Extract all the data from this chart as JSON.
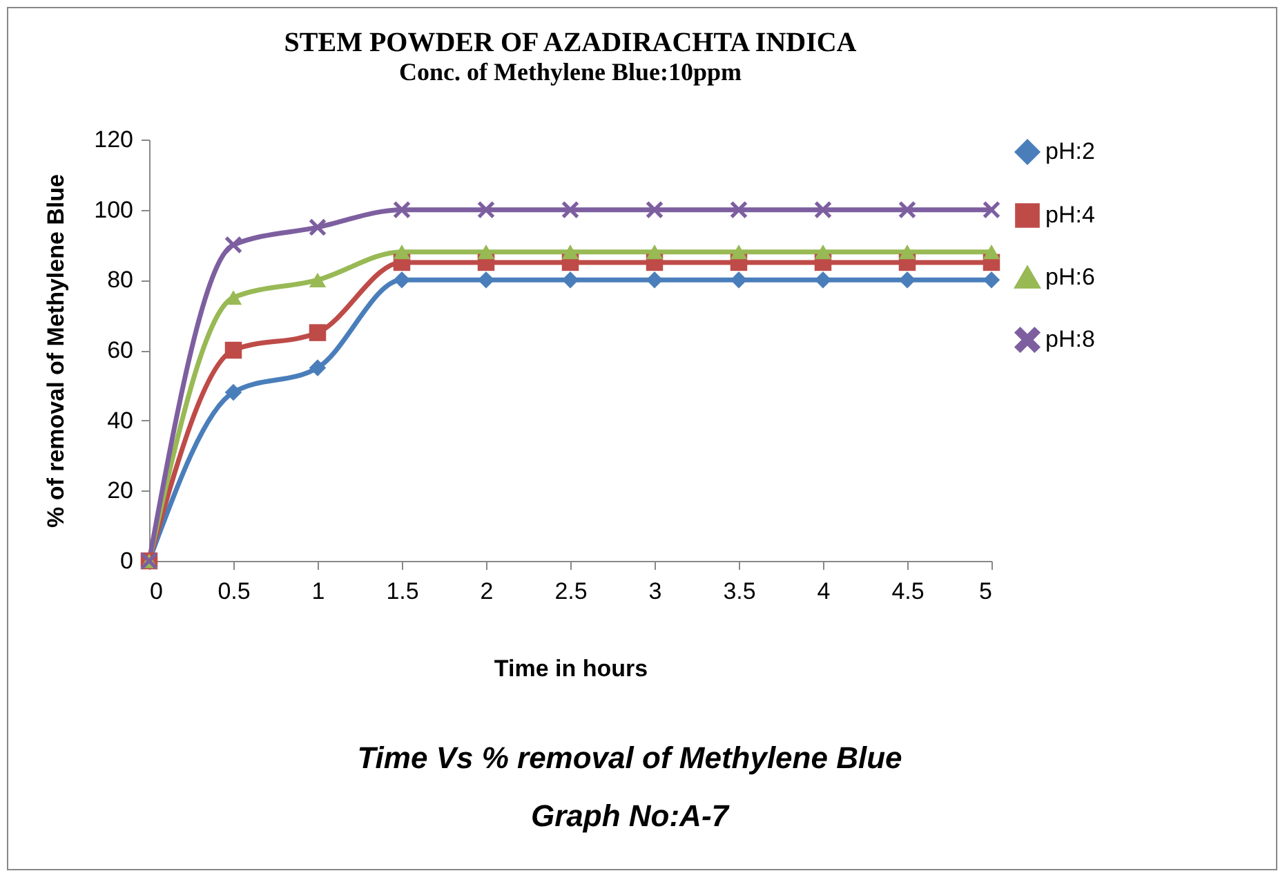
{
  "chart_data": {
    "type": "line",
    "title": "STEM POWDER OF AZADIRACHTA INDICA",
    "subtitle": "Conc. of Methylene Blue:10ppm",
    "xlabel": "Time in hours",
    "ylabel": "% of removal of Methylene Blue",
    "x": [
      0,
      0.5,
      1,
      1.5,
      2,
      2.5,
      3,
      3.5,
      4,
      4.5,
      5
    ],
    "series": [
      {
        "name": "pH:2",
        "color": "#4a7ebb",
        "marker": "diamond",
        "values": [
          0,
          48,
          55,
          80,
          80,
          80,
          80,
          80,
          80,
          80,
          80
        ]
      },
      {
        "name": "pH:4",
        "color": "#be4b48",
        "marker": "square",
        "values": [
          0,
          60,
          65,
          85,
          85,
          85,
          85,
          85,
          85,
          85,
          85
        ]
      },
      {
        "name": "pH:6",
        "color": "#98b954",
        "marker": "triangle",
        "values": [
          0,
          75,
          80,
          88,
          88,
          88,
          88,
          88,
          88,
          88,
          88
        ]
      },
      {
        "name": "pH:8",
        "color": "#7d5fa0",
        "marker": "cross",
        "values": [
          0,
          90,
          95,
          100,
          100,
          100,
          100,
          100,
          100,
          100,
          100
        ]
      }
    ],
    "xlim": [
      0,
      5
    ],
    "xticks": [
      0,
      0.5,
      1,
      1.5,
      2,
      2.5,
      3,
      3.5,
      4,
      4.5,
      5
    ],
    "ylim": [
      0,
      120
    ],
    "yticks": [
      0,
      20,
      40,
      60,
      80,
      100,
      120
    ],
    "grid": false,
    "legend": "top right",
    "line_style": "solid",
    "annotations": [
      "Time Vs % removal of Methylene Blue",
      "Graph No:A-7"
    ]
  }
}
